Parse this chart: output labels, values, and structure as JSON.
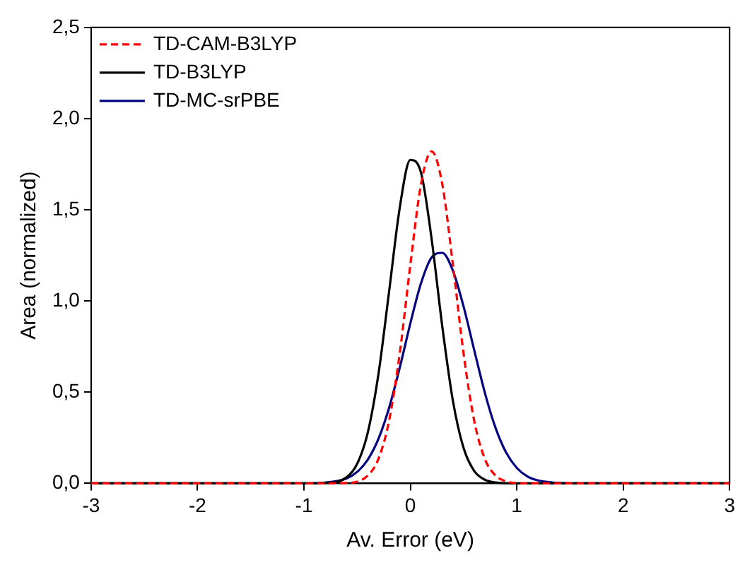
{
  "chart_data": {
    "type": "line",
    "xlabel": "Av. Error (eV)",
    "ylabel": "Area (normalized)",
    "xlim": [
      -3,
      3
    ],
    "xticks": [
      -3,
      -2,
      -1,
      0,
      1,
      2,
      3
    ],
    "ylim": [
      0,
      2.5
    ],
    "yticks": [
      {
        "value": 0,
        "label": "0,0"
      },
      {
        "value": 0.5,
        "label": "0,5"
      },
      {
        "value": 1,
        "label": "1,0"
      },
      {
        "value": 1.5,
        "label": "1,5"
      },
      {
        "value": 2,
        "label": "2,0"
      },
      {
        "value": 2.5,
        "label": "2,5"
      }
    ],
    "grid": false,
    "legend": "top left",
    "marker": "none",
    "series": [
      {
        "name": "TD-CAM-B3LYP",
        "color": "#ff0000",
        "line_style": "dashed",
        "x": [
          -3,
          -1,
          -0.6,
          -0.4,
          -0.3,
          -0.2,
          -0.1,
          0,
          0.1,
          0.2,
          0.3,
          0.4,
          0.5,
          0.6,
          0.7,
          0.8,
          0.9,
          1.0,
          1.2,
          3
        ],
        "values": [
          0,
          0,
          0.002,
          0.043,
          0.134,
          0.343,
          0.712,
          1.199,
          1.64,
          1.82,
          1.64,
          1.199,
          0.712,
          0.343,
          0.134,
          0.043,
          0.011,
          0.002,
          0,
          0
        ]
      },
      {
        "name": "TD-B3LYP",
        "color": "#000000",
        "line_style": "solid",
        "x": [
          -3,
          -1,
          -0.8,
          -0.6,
          -0.5,
          -0.4,
          -0.3,
          -0.2,
          -0.1,
          0,
          0.1,
          0.2,
          0.3,
          0.4,
          0.5,
          0.6,
          0.7,
          0.8,
          1.0,
          3
        ],
        "values": [
          0,
          0,
          0.002,
          0.033,
          0.107,
          0.279,
          0.599,
          1.051,
          1.51,
          1.774,
          1.704,
          1.339,
          0.86,
          0.452,
          0.194,
          0.068,
          0.02,
          0.005,
          0,
          0
        ]
      },
      {
        "name": "TD-MC-srPBE",
        "color": "#000080",
        "line_style": "solid",
        "x": [
          -3,
          -1,
          -0.8,
          -0.6,
          -0.5,
          -0.4,
          -0.3,
          -0.2,
          -0.1,
          0,
          0.1,
          0.2,
          0.3,
          0.4,
          0.5,
          0.6,
          0.7,
          0.8,
          0.9,
          1.0,
          1.1,
          1.2,
          1.4,
          1.6,
          3
        ],
        "values": [
          0,
          0,
          0.004,
          0.027,
          0.063,
          0.13,
          0.244,
          0.414,
          0.634,
          0.877,
          1.097,
          1.239,
          1.264,
          1.166,
          0.97,
          0.731,
          0.497,
          0.305,
          0.169,
          0.085,
          0.038,
          0.016,
          0.002,
          0,
          0
        ]
      }
    ]
  }
}
